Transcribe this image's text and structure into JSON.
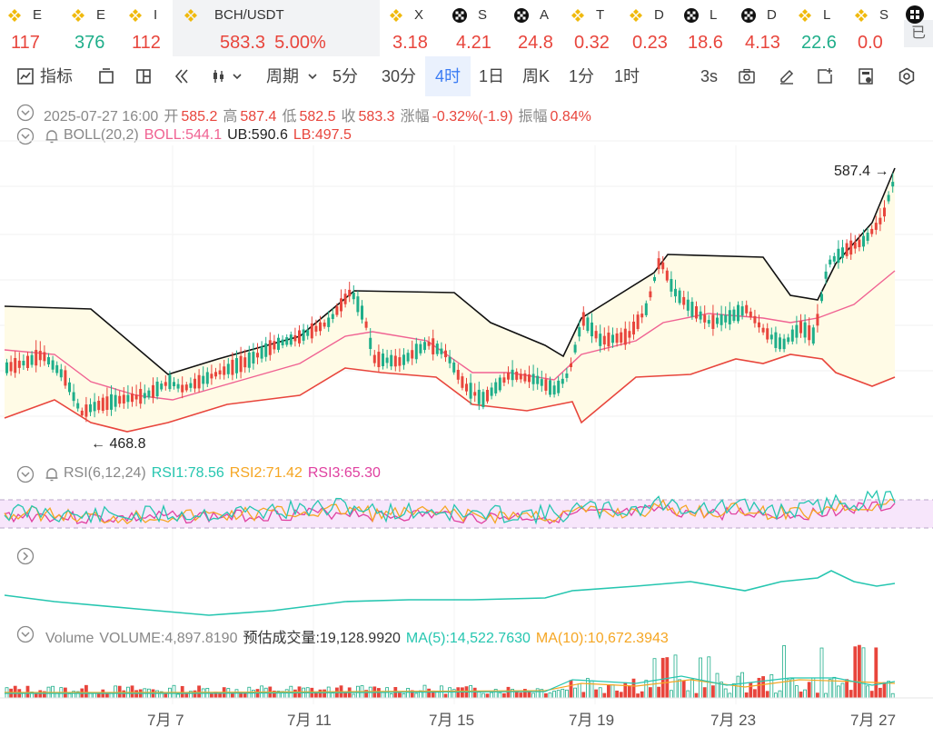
{
  "tickers": [
    {
      "name": "E",
      "price": "117",
      "color": "red",
      "icon": "binance-icon"
    },
    {
      "name": "E",
      "price": "376",
      "color": "green",
      "icon": "binance-icon"
    },
    {
      "name": "I",
      "price": "112",
      "color": "red",
      "icon": "binance-icon"
    },
    {
      "name": "BCH/USDT",
      "price": "583.3",
      "change": "5.00%",
      "color": "red",
      "icon": "binance-icon",
      "active": true
    },
    {
      "name": "X",
      "price": "3.18",
      "color": "red",
      "icon": "binance-icon"
    },
    {
      "name": "S",
      "price": "4.21",
      "color": "red",
      "icon": "okx-icon"
    },
    {
      "name": "A",
      "price": "24.8",
      "color": "red",
      "icon": "okx-icon"
    },
    {
      "name": "T",
      "price": "0.32",
      "color": "red",
      "icon": "binance-icon"
    },
    {
      "name": "D",
      "price": "0.23",
      "color": "red",
      "icon": "binance-icon"
    },
    {
      "name": "L",
      "price": "18.6",
      "color": "red",
      "icon": "okx-icon"
    },
    {
      "name": "D",
      "price": "4.13",
      "color": "red",
      "icon": "okx-icon"
    },
    {
      "name": "L",
      "price": "22.6",
      "color": "green",
      "icon": "binance-icon"
    },
    {
      "name": "S",
      "price": "0.0",
      "color": "red",
      "icon": "binance-icon"
    }
  ],
  "right_tag": "已",
  "toolbar": {
    "indicators": "指标",
    "period": "周期",
    "intervals": [
      "5分",
      "30分",
      "4时",
      "1日",
      "周K",
      "1分",
      "1时"
    ],
    "selected_interval": "4时",
    "refresh": "3s"
  },
  "ohlc": {
    "date": "2025-07-27 16:00",
    "open_label": "开",
    "open": "585.2",
    "high_label": "高",
    "high": "587.4",
    "low_label": "低",
    "low": "582.5",
    "close_label": "收",
    "close": "583.3",
    "chg_label": "涨幅",
    "chg": "-0.32%(-1.9)",
    "amp_label": "振幅",
    "amp": "0.84%"
  },
  "boll": {
    "name": "BOLL(20,2)",
    "mid": "BOLL:544.1",
    "ub": "UB:590.6",
    "lb": "LB:497.5"
  },
  "rsi": {
    "name": "RSI(6,12,24)",
    "r1": "RSI1:78.56",
    "r2": "RSI2:71.42",
    "r3": "RSI3:65.30"
  },
  "volume": {
    "name": "Volume",
    "vol": "VOLUME:4,897.8190",
    "est": "预估成交量:19,128.9920",
    "ma5": "MA(5):14,522.7630",
    "ma10": "MA(10):10,672.3943"
  },
  "chart_data": {
    "type": "candlestick",
    "symbol": "BCH/USDT",
    "interval": "4时",
    "max_label": "587.4",
    "min_label": "468.8",
    "x_ticks": [
      "7月 7",
      "7月 11",
      "7月 15",
      "7月 19",
      "7月 23",
      "7月 27"
    ]
  },
  "colors": {
    "up": "#1fae8a",
    "down": "#e8453c",
    "accent": "#3b7cf4",
    "boll_mid": "#f06292",
    "boll_band": "#111111",
    "rsi1": "#26c6b0",
    "rsi2": "#f5a623",
    "rsi3": "#e040a0",
    "ma5": "#26c6b0",
    "ma10": "#f5a623"
  }
}
